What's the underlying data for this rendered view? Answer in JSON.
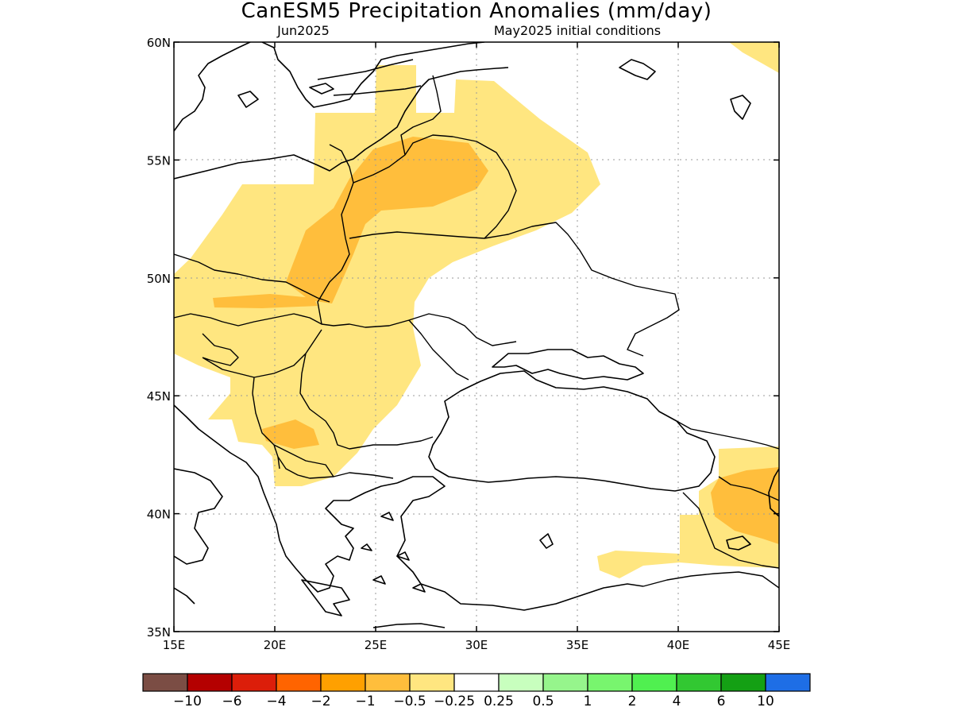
{
  "title": "CanESM5 Precipitation Anomalies (mm/day)",
  "subtitle_left": "Jun2025",
  "subtitle_right": "May2025 initial conditions",
  "map": {
    "lon_range": [
      15,
      45
    ],
    "lat_range": [
      35,
      60
    ],
    "lon_ticks": [
      "15E",
      "20E",
      "25E",
      "30E",
      "35E",
      "40E",
      "45E"
    ],
    "lat_ticks": [
      "60N",
      "55N",
      "50N",
      "45N",
      "40N",
      "35N"
    ]
  },
  "colorbar": {
    "colors": [
      "#7b4d44",
      "#b40000",
      "#dc1e0a",
      "#ff6400",
      "#ffa000",
      "#ffbe3c",
      "#ffe680",
      "#ffffff",
      "#c8ffbe",
      "#96f58c",
      "#78f56e",
      "#50f050",
      "#32c832",
      "#14a014",
      "#1e6ee6"
    ],
    "labels": [
      "−10",
      "−6",
      "−4",
      "−2",
      "−1",
      "−0.5",
      "−0.25",
      "0.25",
      "0.5",
      "1",
      "2",
      "4",
      "6",
      "10"
    ]
  }
}
